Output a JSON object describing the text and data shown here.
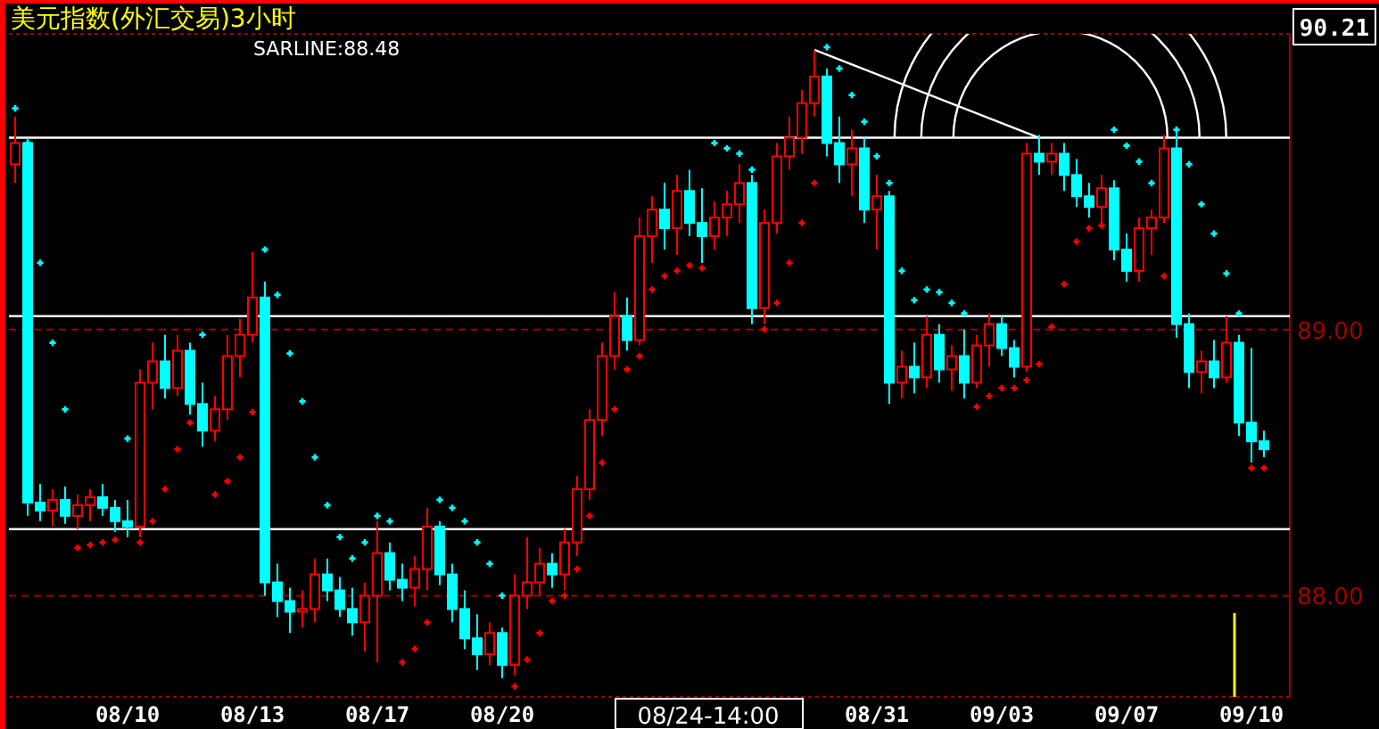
{
  "chart_data": {
    "type": "candlestick",
    "title": "美元指数(外汇交易)3小时",
    "annotations": [
      "SARLINE:88.48",
      "90.21",
      "08/24-14:00"
    ],
    "categories": [
      null,
      null,
      null,
      null,
      null,
      null,
      null,
      null,
      null,
      "08/10",
      null,
      null,
      null,
      null,
      null,
      null,
      null,
      null,
      null,
      "08/13",
      null,
      null,
      null,
      null,
      null,
      null,
      null,
      null,
      null,
      "08/17",
      null,
      null,
      null,
      null,
      null,
      null,
      null,
      null,
      null,
      "08/20",
      null,
      null,
      null,
      null,
      null,
      null,
      null,
      null,
      null,
      null,
      null,
      null,
      null,
      null,
      null,
      null,
      null,
      null,
      null,
      null,
      null,
      null,
      null,
      null,
      null,
      null,
      null,
      null,
      null,
      "08/31",
      null,
      null,
      null,
      null,
      null,
      null,
      null,
      null,
      null,
      "09/03",
      null,
      null,
      null,
      null,
      null,
      null,
      null,
      null,
      null,
      "09/07",
      null,
      null,
      null,
      null,
      null,
      null,
      null,
      null,
      null,
      "09/10",
      null
    ],
    "ohlc": [
      [
        89.62,
        89.8,
        89.55,
        89.7
      ],
      [
        89.7,
        89.72,
        88.3,
        88.35
      ],
      [
        88.35,
        88.42,
        88.28,
        88.32
      ],
      [
        88.32,
        88.4,
        88.26,
        88.36
      ],
      [
        88.36,
        88.41,
        88.27,
        88.3
      ],
      [
        88.3,
        88.38,
        88.25,
        88.34
      ],
      [
        88.34,
        88.4,
        88.28,
        88.37
      ],
      [
        88.37,
        88.42,
        88.3,
        88.33
      ],
      [
        88.33,
        88.36,
        88.24,
        88.28
      ],
      [
        88.28,
        88.36,
        88.22,
        88.26
      ],
      [
        88.26,
        88.85,
        88.22,
        88.8
      ],
      [
        88.8,
        88.95,
        88.7,
        88.88
      ],
      [
        88.88,
        88.98,
        88.74,
        88.78
      ],
      [
        88.78,
        88.98,
        88.75,
        88.92
      ],
      [
        88.92,
        88.95,
        88.68,
        88.72
      ],
      [
        88.72,
        88.8,
        88.56,
        88.62
      ],
      [
        88.62,
        88.75,
        88.58,
        88.7
      ],
      [
        88.7,
        88.98,
        88.66,
        88.9
      ],
      [
        88.9,
        89.04,
        88.82,
        88.98
      ],
      [
        88.98,
        89.29,
        88.95,
        89.12
      ],
      [
        89.12,
        89.18,
        88.0,
        88.05
      ],
      [
        88.05,
        88.12,
        87.92,
        87.98
      ],
      [
        87.98,
        88.03,
        87.86,
        87.94
      ],
      [
        87.94,
        88.02,
        87.88,
        87.95
      ],
      [
        87.95,
        88.14,
        87.9,
        88.08
      ],
      [
        88.08,
        88.14,
        87.98,
        88.02
      ],
      [
        88.02,
        88.07,
        87.92,
        87.95
      ],
      [
        87.95,
        88.03,
        87.85,
        87.9
      ],
      [
        87.9,
        88.05,
        87.79,
        88.0
      ],
      [
        88.0,
        88.28,
        87.75,
        88.16
      ],
      [
        88.16,
        88.2,
        88.02,
        88.06
      ],
      [
        88.06,
        88.12,
        87.98,
        88.03
      ],
      [
        88.03,
        88.15,
        87.96,
        88.1
      ],
      [
        88.1,
        88.33,
        88.02,
        88.26
      ],
      [
        88.26,
        88.28,
        88.04,
        88.08
      ],
      [
        88.08,
        88.12,
        87.9,
        87.95
      ],
      [
        87.95,
        88.02,
        87.8,
        87.84
      ],
      [
        87.84,
        87.93,
        87.72,
        87.78
      ],
      [
        87.78,
        87.9,
        87.74,
        87.86
      ],
      [
        87.86,
        87.88,
        87.69,
        87.74
      ],
      [
        87.74,
        88.08,
        87.7,
        88.0
      ],
      [
        88.0,
        88.22,
        87.95,
        88.05
      ],
      [
        88.05,
        88.18,
        88.0,
        88.12
      ],
      [
        88.12,
        88.16,
        88.03,
        88.08
      ],
      [
        88.08,
        88.25,
        88.02,
        88.2
      ],
      [
        88.2,
        88.45,
        88.15,
        88.4
      ],
      [
        88.4,
        88.7,
        88.36,
        88.66
      ],
      [
        88.66,
        88.95,
        88.6,
        88.9
      ],
      [
        88.9,
        89.14,
        88.85,
        89.05
      ],
      [
        89.05,
        89.12,
        88.92,
        88.96
      ],
      [
        88.96,
        89.42,
        88.94,
        89.35
      ],
      [
        89.35,
        89.5,
        89.25,
        89.45
      ],
      [
        89.45,
        89.55,
        89.3,
        89.38
      ],
      [
        89.38,
        89.58,
        89.28,
        89.52
      ],
      [
        89.52,
        89.6,
        89.35,
        89.4
      ],
      [
        89.4,
        89.53,
        89.25,
        89.35
      ],
      [
        89.35,
        89.48,
        89.3,
        89.42
      ],
      [
        89.42,
        89.52,
        89.35,
        89.47
      ],
      [
        89.47,
        89.62,
        89.4,
        89.55
      ],
      [
        89.55,
        89.58,
        89.02,
        89.08
      ],
      [
        89.08,
        89.45,
        89.02,
        89.4
      ],
      [
        89.4,
        89.7,
        89.36,
        89.65
      ],
      [
        89.65,
        89.8,
        89.6,
        89.72
      ],
      [
        89.72,
        89.9,
        89.66,
        89.85
      ],
      [
        89.85,
        90.05,
        89.8,
        89.95
      ],
      [
        89.95,
        89.98,
        89.65,
        89.7
      ],
      [
        89.7,
        89.8,
        89.55,
        89.62
      ],
      [
        89.62,
        89.75,
        89.5,
        89.68
      ],
      [
        89.68,
        89.72,
        89.4,
        89.45
      ],
      [
        89.45,
        89.58,
        89.3,
        89.5
      ],
      [
        89.5,
        89.52,
        88.72,
        88.8
      ],
      [
        88.8,
        88.92,
        88.74,
        88.86
      ],
      [
        88.86,
        88.95,
        88.76,
        88.82
      ],
      [
        88.82,
        89.05,
        88.78,
        88.98
      ],
      [
        88.98,
        89.02,
        88.8,
        88.85
      ],
      [
        88.85,
        88.94,
        88.77,
        88.9
      ],
      [
        88.9,
        89.0,
        88.74,
        88.8
      ],
      [
        88.8,
        88.98,
        88.78,
        88.94
      ],
      [
        88.94,
        89.06,
        88.86,
        89.02
      ],
      [
        89.02,
        89.05,
        88.9,
        88.93
      ],
      [
        88.93,
        88.96,
        88.82,
        88.86
      ],
      [
        88.86,
        89.7,
        88.84,
        89.66
      ],
      [
        89.66,
        89.73,
        89.58,
        89.63
      ],
      [
        89.63,
        89.7,
        89.58,
        89.66
      ],
      [
        89.66,
        89.7,
        89.52,
        89.58
      ],
      [
        89.58,
        89.64,
        89.46,
        89.5
      ],
      [
        89.5,
        89.55,
        89.42,
        89.46
      ],
      [
        89.46,
        89.58,
        89.4,
        89.53
      ],
      [
        89.53,
        89.56,
        89.26,
        89.3
      ],
      [
        89.3,
        89.36,
        89.18,
        89.22
      ],
      [
        89.22,
        89.42,
        89.18,
        89.38
      ],
      [
        89.38,
        89.45,
        89.28,
        89.42
      ],
      [
        89.42,
        89.73,
        89.4,
        89.68
      ],
      [
        89.68,
        89.74,
        88.97,
        89.02
      ],
      [
        89.02,
        89.06,
        88.78,
        88.84
      ],
      [
        88.84,
        88.92,
        88.76,
        88.88
      ],
      [
        88.88,
        88.96,
        88.78,
        88.82
      ],
      [
        88.82,
        89.05,
        88.8,
        88.95
      ],
      [
        88.95,
        88.98,
        88.6,
        88.65
      ],
      [
        88.65,
        88.93,
        88.5,
        88.58
      ],
      [
        88.58,
        88.62,
        88.52,
        88.55
      ]
    ],
    "colors": [
      "#ff0000",
      "#00ffff",
      "#00ffff",
      "#ff0000",
      "#00ffff",
      "#ff0000",
      "#ff0000",
      "#00ffff",
      "#00ffff",
      "#00ffff",
      "#ff0000",
      "#ff0000",
      "#00ffff",
      "#ff0000",
      "#00ffff",
      "#00ffff",
      "#ff0000",
      "#ff0000",
      "#ff0000",
      "#ff0000",
      "#00ffff",
      "#00ffff",
      "#00ffff",
      "#ff0000",
      "#ff0000",
      "#00ffff",
      "#00ffff",
      "#00ffff",
      "#ff0000",
      "#ff0000",
      "#00ffff",
      "#00ffff",
      "#ff0000",
      "#ff0000",
      "#00ffff",
      "#00ffff",
      "#00ffff",
      "#00ffff",
      "#ff0000",
      "#00ffff",
      "#ff0000",
      "#ff0000",
      "#ff0000",
      "#00ffff",
      "#ff0000",
      "#ff0000",
      "#ff0000",
      "#ff0000",
      "#ff0000",
      "#00ffff",
      "#ff0000",
      "#ff0000",
      "#00ffff",
      "#ff0000",
      "#00ffff",
      "#00ffff",
      "#ff0000",
      "#ff0000",
      "#ff0000",
      "#00ffff",
      "#ff0000",
      "#ff0000",
      "#ff0000",
      "#ff0000",
      "#ff0000",
      "#00ffff",
      "#00ffff",
      "#ff0000",
      "#00ffff",
      "#ff0000",
      "#00ffff",
      "#ff0000",
      "#00ffff",
      "#ff0000",
      "#00ffff",
      "#ff0000",
      "#00ffff",
      "#ff0000",
      "#ff0000",
      "#00ffff",
      "#00ffff",
      "#ff0000",
      "#00ffff",
      "#ff0000",
      "#00ffff",
      "#00ffff",
      "#00ffff",
      "#ff0000",
      "#00ffff",
      "#00ffff",
      "#ff0000",
      "#ff0000",
      "#ff0000",
      "#00ffff",
      "#00ffff",
      "#ff0000",
      "#00ffff",
      "#ff0000",
      "#00ffff",
      "#00ffff",
      "#00ffff"
    ],
    "series": [
      {
        "type": "scatter",
        "marker": "cross",
        "values": [
          89.83,
          89.7,
          89.25,
          88.95,
          88.7,
          88.18,
          88.19,
          88.2,
          88.21,
          88.59,
          88.2,
          88.28,
          88.4,
          88.55,
          88.65,
          88.98,
          88.38,
          88.43,
          88.52,
          88.69,
          89.3,
          89.13,
          88.91,
          88.73,
          88.52,
          88.34,
          88.22,
          88.14,
          88.2,
          88.3,
          88.28,
          87.75,
          87.8,
          87.9,
          88.36,
          88.33,
          88.28,
          88.2,
          88.12,
          88.0,
          87.66,
          87.76,
          87.86,
          87.98,
          88.0,
          88.1,
          88.3,
          88.5,
          88.7,
          88.85,
          88.9,
          89.15,
          89.2,
          89.22,
          89.24,
          89.23,
          89.7,
          89.68,
          89.66,
          89.6,
          89.0,
          89.1,
          89.25,
          89.4,
          89.55,
          90.06,
          89.98,
          89.88,
          89.78,
          89.65,
          89.55,
          89.22,
          89.11,
          89.15,
          89.14,
          89.1,
          89.06,
          88.71,
          88.75,
          88.78,
          88.78,
          88.81,
          88.87,
          89.01,
          89.17,
          89.33,
          89.38,
          89.39,
          89.75,
          89.69,
          89.63,
          89.55,
          89.2,
          89.75,
          89.62,
          89.47,
          89.36,
          89.21,
          89.06,
          88.48,
          88.48
        ],
        "colors": [
          "#00ffff",
          "#00ffff",
          "#00ffff",
          "#00ffff",
          "#00ffff",
          "#ff0000",
          "#ff0000",
          "#ff0000",
          "#ff0000",
          "#00ffff",
          "#ff0000",
          "#ff0000",
          "#ff0000",
          "#ff0000",
          "#ff0000",
          "#00ffff",
          "#ff0000",
          "#ff0000",
          "#ff0000",
          "#ff0000",
          "#00ffff",
          "#00ffff",
          "#00ffff",
          "#00ffff",
          "#00ffff",
          "#00ffff",
          "#00ffff",
          "#00ffff",
          "#00ffff",
          "#00ffff",
          "#00ffff",
          "#ff0000",
          "#ff0000",
          "#ff0000",
          "#00ffff",
          "#00ffff",
          "#00ffff",
          "#00ffff",
          "#00ffff",
          "#00ffff",
          "#ff0000",
          "#ff0000",
          "#ff0000",
          "#ff0000",
          "#ff0000",
          "#ff0000",
          "#ff0000",
          "#ff0000",
          "#ff0000",
          "#ff0000",
          "#ff0000",
          "#ff0000",
          "#ff0000",
          "#ff0000",
          "#ff0000",
          "#ff0000",
          "#00ffff",
          "#00ffff",
          "#00ffff",
          "#00ffff",
          "#ff0000",
          "#ff0000",
          "#ff0000",
          "#ff0000",
          "#ff0000",
          "#00ffff",
          "#00ffff",
          "#00ffff",
          "#00ffff",
          "#00ffff",
          "#00ffff",
          "#00ffff",
          "#00ffff",
          "#00ffff",
          "#00ffff",
          "#00ffff",
          "#00ffff",
          "#ff0000",
          "#ff0000",
          "#ff0000",
          "#ff0000",
          "#ff0000",
          "#ff0000",
          "#ff0000",
          "#ff0000",
          "#ff0000",
          "#ff0000",
          "#ff0000",
          "#00ffff",
          "#00ffff",
          "#00ffff",
          "#00ffff",
          "#ff0000",
          "#00ffff",
          "#00ffff",
          "#00ffff",
          "#00ffff",
          "#00ffff",
          "#00ffff",
          "#ff0000",
          "#ff0000"
        ]
      }
    ],
    "ylim": [
      87.62,
      90.11
    ],
    "yticks": [
      {
        "value": 89,
        "label": "89.00"
      },
      {
        "value": 88,
        "label": "88.00"
      }
    ],
    "grid": "y",
    "ref_lines": [
      {
        "axis": "y",
        "value": 89.72,
        "color": "#ffffff"
      },
      {
        "axis": "y",
        "value": 89.05,
        "color": "#ffffff"
      },
      {
        "axis": "y",
        "value": 88.25,
        "color": "#ffffff"
      }
    ]
  }
}
